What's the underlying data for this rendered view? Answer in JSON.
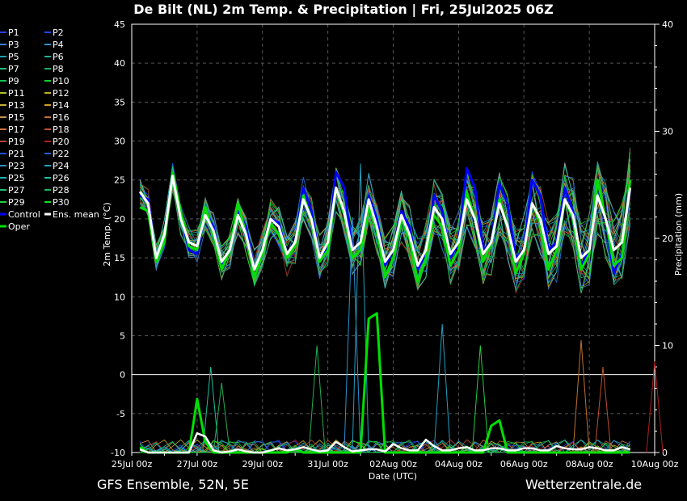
{
  "page": {
    "title": "De Bilt  (NL)  2m Temp. & Precipitation | Fri, 25Jul2025 06Z",
    "footer_left": "GFS Ensemble, 52N, 5E",
    "footer_right": "Wetterzentrale.de"
  },
  "chart_data": {
    "type": "line",
    "title": "De Bilt  (NL)  2m Temp. & Precipitation | Fri, 25Jul2025 06Z",
    "xlabel": "Date (UTC)",
    "ylabel": "2m Temp. (°C)",
    "y2label": "Precipitation (mm)",
    "xlim": [
      0,
      366
    ],
    "ylim": [
      -10,
      45
    ],
    "y2lim": [
      0,
      40
    ],
    "x_ticks": [
      {
        "h": 0,
        "label": "25Jul 00z"
      },
      {
        "h": 48,
        "label": "27Jul 00z"
      },
      {
        "h": 96,
        "label": "29Jul 00z"
      },
      {
        "h": 144,
        "label": "31Jul 00z"
      },
      {
        "h": 192,
        "label": "02Aug 00z"
      },
      {
        "h": 240,
        "label": "04Aug 00z"
      },
      {
        "h": 288,
        "label": "06Aug 00z"
      },
      {
        "h": 336,
        "label": "08Aug 00z"
      },
      {
        "h": 384,
        "label": "10Aug 00z"
      }
    ],
    "y_ticks": [
      -10,
      -5,
      0,
      5,
      10,
      15,
      20,
      25,
      30,
      35,
      40,
      45
    ],
    "y2_ticks": [
      0,
      10,
      20,
      30,
      40
    ],
    "grid": true,
    "legend_position": "left",
    "legend": [
      {
        "name": "P1",
        "color": "#2040ff"
      },
      {
        "name": "P2",
        "color": "#1a4bff"
      },
      {
        "name": "P3",
        "color": "#3a7bd5"
      },
      {
        "name": "P4",
        "color": "#2f8fd0"
      },
      {
        "name": "P5",
        "color": "#1aa0b0"
      },
      {
        "name": "P6",
        "color": "#20b090"
      },
      {
        "name": "P7",
        "color": "#20c080"
      },
      {
        "name": "P8",
        "color": "#18b060"
      },
      {
        "name": "P9",
        "color": "#10c050"
      },
      {
        "name": "P10",
        "color": "#10d030"
      },
      {
        "name": "P11",
        "color": "#b0c020"
      },
      {
        "name": "P12",
        "color": "#c0b020"
      },
      {
        "name": "P13",
        "color": "#c8b030"
      },
      {
        "name": "P14",
        "color": "#d0a020"
      },
      {
        "name": "P15",
        "color": "#c89050"
      },
      {
        "name": "P16",
        "color": "#c07030"
      },
      {
        "name": "P17",
        "color": "#d07040"
      },
      {
        "name": "P18",
        "color": "#c05030"
      },
      {
        "name": "P19",
        "color": "#c04030"
      },
      {
        "name": "P20",
        "color": "#b02020"
      },
      {
        "name": "P21",
        "color": "#2050e0"
      },
      {
        "name": "P22",
        "color": "#2060d0"
      },
      {
        "name": "P23",
        "color": "#3090c0"
      },
      {
        "name": "P24",
        "color": "#20a0c0"
      },
      {
        "name": "P25",
        "color": "#20b0b0"
      },
      {
        "name": "P26",
        "color": "#20c0a0"
      },
      {
        "name": "P27",
        "color": "#20c070"
      },
      {
        "name": "P28",
        "color": "#20b050"
      },
      {
        "name": "P29",
        "color": "#20d040"
      },
      {
        "name": "P30",
        "color": "#10e020"
      },
      {
        "name": "Control",
        "color": "#0000ff"
      },
      {
        "name": "Ens. mean",
        "color": "#ffffff"
      },
      {
        "name": "Oper",
        "color": "#00e000"
      }
    ],
    "mean_temp": {
      "x": [
        6,
        12,
        18,
        24,
        30,
        36,
        42,
        48,
        54,
        60,
        66,
        72,
        78,
        84,
        90,
        96,
        102,
        108,
        114,
        120,
        126,
        132,
        138,
        144,
        150,
        156,
        162,
        168,
        174,
        180,
        186,
        192,
        198,
        204,
        210,
        216,
        222,
        228,
        234,
        240,
        246,
        252,
        258,
        264,
        270,
        276,
        282,
        288,
        294,
        300,
        306,
        312,
        318,
        324,
        330,
        336,
        342,
        348,
        354,
        360,
        366
      ],
      "y": [
        23.5,
        22,
        15,
        18,
        25.5,
        20,
        17,
        16.5,
        20.5,
        18.5,
        14.5,
        16,
        20.5,
        18,
        13.5,
        16,
        20,
        19,
        15.5,
        17,
        22.5,
        20,
        15,
        17,
        24,
        21,
        16,
        17,
        22.5,
        19,
        14.5,
        16,
        20.5,
        18,
        14,
        16,
        21.5,
        20,
        15.5,
        17,
        22.5,
        20,
        15.5,
        17,
        22,
        19,
        14.5,
        16,
        22,
        20,
        15.5,
        16.5,
        22.5,
        20.5,
        15,
        16,
        23,
        20,
        16,
        17,
        24
      ]
    },
    "oper_temp": {
      "x": [
        6,
        12,
        18,
        24,
        30,
        36,
        42,
        48,
        54,
        60,
        66,
        72,
        78,
        84,
        90,
        96,
        102,
        108,
        114,
        120,
        126,
        132,
        138,
        144,
        150,
        156,
        162,
        168,
        174,
        180,
        186,
        192,
        198,
        204,
        210,
        216,
        222,
        228,
        234,
        240,
        246,
        252,
        258,
        264,
        270,
        276,
        282,
        288,
        294,
        300,
        306,
        312,
        318,
        324,
        330,
        336,
        342,
        348,
        354,
        360,
        366
      ],
      "y": [
        21.5,
        21,
        14.5,
        17,
        26,
        21,
        16.5,
        16,
        21.5,
        18,
        13.5,
        16,
        22,
        18,
        12.5,
        15.5,
        19.5,
        18,
        15,
        16.5,
        23,
        20,
        14.5,
        16,
        24,
        20.5,
        15,
        16,
        21.5,
        18.5,
        12.5,
        15,
        20,
        17.5,
        12,
        15,
        20.5,
        19,
        14,
        16,
        23.5,
        20,
        14.5,
        17,
        22.5,
        19,
        13,
        15.5,
        22,
        19.5,
        13.5,
        16,
        22.5,
        20,
        13.5,
        15.5,
        25,
        20,
        14,
        15,
        25
      ]
    },
    "control_temp": {
      "x": [
        6,
        12,
        18,
        24,
        30,
        36,
        42,
        48,
        54,
        60,
        66,
        72,
        78,
        84,
        90,
        96,
        102,
        108,
        114,
        120,
        126,
        132,
        138,
        144,
        150,
        156,
        162,
        168,
        174,
        180,
        186,
        192,
        198,
        204,
        210,
        216,
        222,
        228,
        234,
        240,
        246,
        252,
        258,
        264,
        270,
        276,
        282,
        288,
        294,
        300,
        306,
        312,
        318,
        324,
        330,
        336,
        342,
        348,
        354,
        360,
        366
      ],
      "y": [
        23,
        22.5,
        15,
        17.5,
        26,
        20.5,
        16,
        15.5,
        21,
        19,
        14,
        16,
        21,
        19,
        13.5,
        16,
        20,
        19.5,
        15.5,
        17,
        24,
        21,
        15,
        16.5,
        26,
        24,
        16,
        17,
        23,
        20,
        14,
        16,
        21,
        19,
        13.5,
        15.5,
        23,
        21,
        15,
        17,
        26.5,
        24,
        16,
        17,
        24.5,
        22,
        15,
        16,
        25,
        23,
        16,
        17,
        24,
        21,
        14,
        16,
        23,
        20,
        13,
        15.5,
        24
      ]
    },
    "oper_precip": {
      "x": [
        6,
        12,
        18,
        24,
        30,
        36,
        42,
        48,
        54,
        60,
        66,
        72,
        78,
        84,
        90,
        96,
        102,
        108,
        114,
        120,
        126,
        132,
        138,
        144,
        150,
        156,
        162,
        168,
        174,
        180,
        186,
        192,
        198,
        204,
        210,
        216,
        222,
        228,
        234,
        240,
        246,
        252,
        258,
        264,
        270,
        276,
        282,
        288,
        294,
        300,
        306,
        312,
        318,
        324,
        330,
        336,
        342,
        348,
        354,
        360,
        366
      ],
      "y": [
        0.5,
        0,
        0,
        0,
        0,
        0,
        0,
        5,
        1,
        0,
        0,
        0,
        0,
        0,
        0,
        0,
        0,
        0,
        0,
        0.3,
        0,
        0,
        0,
        0,
        0,
        0,
        0,
        0,
        12.5,
        13,
        0,
        0,
        0,
        0,
        0,
        0,
        0,
        0,
        0,
        0,
        0,
        0,
        0,
        2.5,
        3,
        0,
        0,
        0,
        0,
        0,
        0,
        0,
        0,
        0,
        0,
        0,
        0,
        0,
        0,
        0,
        0
      ]
    },
    "mean_precip": {
      "x": [
        6,
        12,
        18,
        24,
        30,
        36,
        42,
        48,
        54,
        60,
        66,
        72,
        78,
        84,
        90,
        96,
        102,
        108,
        114,
        120,
        126,
        132,
        138,
        144,
        150,
        156,
        162,
        168,
        174,
        180,
        186,
        192,
        198,
        204,
        210,
        216,
        222,
        228,
        234,
        240,
        246,
        252,
        258,
        264,
        270,
        276,
        282,
        288,
        294,
        300,
        306,
        312,
        318,
        324,
        330,
        336,
        342,
        348,
        354,
        360,
        366
      ],
      "y": [
        0.3,
        0,
        0,
        0,
        0,
        0,
        0,
        1.8,
        1.5,
        0.2,
        0,
        0.1,
        0.3,
        0.1,
        0,
        0,
        0.2,
        0.4,
        0.2,
        0.3,
        0.5,
        0.3,
        0.1,
        0.2,
        1,
        0.5,
        0.1,
        0.2,
        0.3,
        0.3,
        0.1,
        0.8,
        0.4,
        0.2,
        0.2,
        1.2,
        0.6,
        0.2,
        0.2,
        0.4,
        0.5,
        0.2,
        0.2,
        0.4,
        0.4,
        0.2,
        0.2,
        0.4,
        0.4,
        0.2,
        0.2,
        0.6,
        0.4,
        0.3,
        0.3,
        0.5,
        0.4,
        0.2,
        0.2,
        0.5,
        0.3
      ]
    },
    "precip_spikes": [
      {
        "x": 58,
        "y": 8,
        "color": "#20c0a0"
      },
      {
        "x": 66,
        "y": 6.5,
        "color": "#20b050"
      },
      {
        "x": 136,
        "y": 10,
        "color": "#20b050"
      },
      {
        "x": 162,
        "y": 22,
        "color": "#2f8fd0"
      },
      {
        "x": 168,
        "y": 27,
        "color": "#20a0c0"
      },
      {
        "x": 228,
        "y": 12,
        "color": "#20a0c0"
      },
      {
        "x": 256,
        "y": 10,
        "color": "#20d040"
      },
      {
        "x": 330,
        "y": 10.5,
        "color": "#c07030"
      },
      {
        "x": 346,
        "y": 8,
        "color": "#c05030"
      },
      {
        "x": 404,
        "y": 8.5,
        "color": "#b02020"
      }
    ]
  }
}
